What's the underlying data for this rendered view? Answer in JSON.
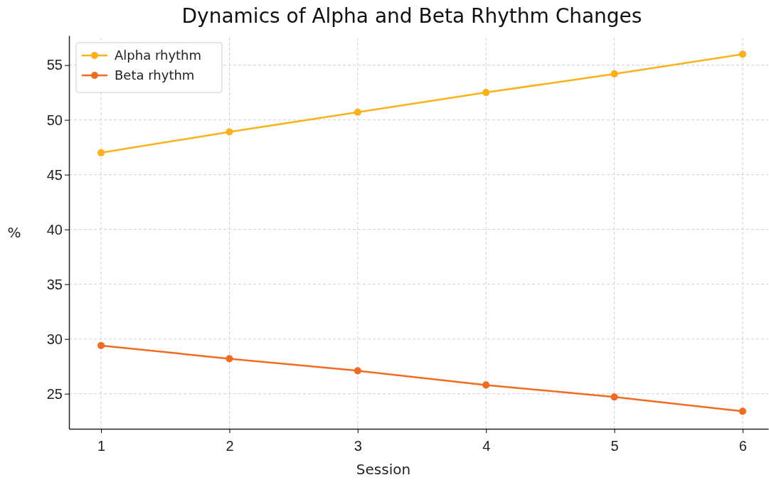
{
  "chart_data": {
    "type": "line",
    "title": "Dynamics of Alpha and Beta Rhythm Changes",
    "xlabel": "Session",
    "ylabel": "%",
    "x": [
      1,
      2,
      3,
      4,
      5,
      6
    ],
    "series": [
      {
        "name": "Alpha rhythm",
        "color": "#fbb117",
        "values": [
          47.0,
          48.9,
          50.7,
          52.5,
          54.2,
          56.0
        ]
      },
      {
        "name": "Beta rhythm",
        "color": "#f26b21",
        "values": [
          29.4,
          28.2,
          27.1,
          25.8,
          24.7,
          23.4
        ]
      }
    ],
    "xlim": [
      0.75,
      6.2
    ],
    "xticks": [
      1,
      2,
      3,
      4,
      5,
      6
    ],
    "ylim": [
      21.8,
      57.7
    ],
    "yticks": [
      25,
      30,
      35,
      40,
      45,
      50,
      55
    ],
    "grid": true,
    "legend": "top left",
    "marker": "circle",
    "line_style": "solid"
  }
}
